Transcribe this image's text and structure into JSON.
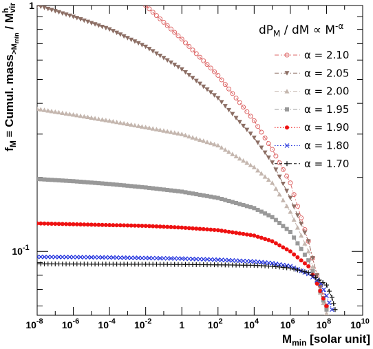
{
  "chart_data": {
    "type": "line",
    "x_scale": "log",
    "y_scale": "log",
    "xlim": [
      1e-08,
      10000000000.0
    ],
    "ylim": [
      0.055,
      1
    ],
    "x_tick_values": [
      1e-08,
      1e-06,
      0.0001,
      0.01,
      1,
      100.0,
      10000.0,
      1000000.0,
      100000000.0,
      10000000000.0
    ],
    "x_tick_labels": [
      {
        "base": "10",
        "exp": "-8"
      },
      {
        "base": "10",
        "exp": "-6"
      },
      {
        "base": "10",
        "exp": "-4"
      },
      {
        "base": "10",
        "exp": "-2"
      },
      {
        "base": "1",
        "exp": ""
      },
      {
        "base": "10",
        "exp": "2"
      },
      {
        "base": "10",
        "exp": "4"
      },
      {
        "base": "10",
        "exp": "6"
      },
      {
        "base": "10",
        "exp": "8"
      },
      {
        "base": "10",
        "exp": "10"
      }
    ],
    "y_tick_labels": [
      {
        "value": 1,
        "base": "1",
        "exp": ""
      },
      {
        "value": 0.1,
        "base": "10",
        "exp": "-1"
      }
    ],
    "xlabel": {
      "main": "M",
      "sub": "min",
      "rest": " [solar unit]"
    },
    "ylabel": {
      "part1": "f",
      "sub1": "M",
      "part2": " ≡ Cumul. mass",
      "sub2": ">M",
      "sub2b": "min",
      "part3": " / M",
      "sup3": "h",
      "sub3": "vir"
    },
    "legend": {
      "title": {
        "a": "dP",
        "a_sub": "M",
        "b": " / dM ∝ M",
        "b_sup": "-α"
      },
      "placement": "top-right"
    },
    "series": [
      {
        "name": "α = 2.10",
        "color": "#dd6666",
        "marker": "open-circle",
        "line": "dashdot",
        "points": [
          [
            0.01,
            1.0
          ],
          [
            1,
            0.73
          ],
          [
            100.0,
            0.52
          ],
          [
            10000.0,
            0.34
          ],
          [
            100000.0,
            0.26
          ],
          [
            1000000.0,
            0.19
          ],
          [
            10000000.0,
            0.11
          ],
          [
            30000000.0,
            0.08
          ],
          [
            100000000.0,
            0.06
          ]
        ]
      },
      {
        "name": "α = 2.05",
        "color": "#8c6e64",
        "marker": "triangle-down",
        "line": "dashdot",
        "points": [
          [
            1e-08,
            1.0
          ],
          [
            1e-06,
            0.9
          ],
          [
            0.0001,
            0.8
          ],
          [
            0.01,
            0.68
          ],
          [
            1,
            0.55
          ],
          [
            100.0,
            0.42
          ],
          [
            10000.0,
            0.29
          ],
          [
            100000.0,
            0.23
          ],
          [
            1000000.0,
            0.165
          ],
          [
            10000000.0,
            0.11
          ],
          [
            30000000.0,
            0.08
          ],
          [
            100000000.0,
            0.058
          ]
        ]
      },
      {
        "name": "α = 2.00",
        "color": "#c4b6ae",
        "marker": "triangle-up",
        "line": "dashdot",
        "points": [
          [
            1e-08,
            0.38
          ],
          [
            1e-06,
            0.36
          ],
          [
            0.0001,
            0.34
          ],
          [
            0.01,
            0.32
          ],
          [
            1,
            0.3
          ],
          [
            100.0,
            0.27
          ],
          [
            10000.0,
            0.22
          ],
          [
            100000.0,
            0.19
          ],
          [
            1000000.0,
            0.145
          ],
          [
            10000000.0,
            0.1
          ],
          [
            30000000.0,
            0.075
          ],
          [
            100000000.0,
            0.056
          ]
        ]
      },
      {
        "name": "α = 1.95",
        "color": "#999999",
        "marker": "square",
        "line": "dashdot",
        "points": [
          [
            1e-08,
            0.197
          ],
          [
            1e-06,
            0.193
          ],
          [
            0.0001,
            0.188
          ],
          [
            0.01,
            0.182
          ],
          [
            1,
            0.175
          ],
          [
            100.0,
            0.165
          ],
          [
            10000.0,
            0.15
          ],
          [
            100000.0,
            0.138
          ],
          [
            1000000.0,
            0.12
          ],
          [
            10000000.0,
            0.092
          ],
          [
            30000000.0,
            0.075
          ],
          [
            100000000.0,
            0.058
          ]
        ]
      },
      {
        "name": "α = 1.90",
        "color": "#ee1111",
        "marker": "filled-circle",
        "line": "dotted",
        "points": [
          [
            1e-08,
            0.13
          ],
          [
            1e-06,
            0.129
          ],
          [
            0.0001,
            0.128
          ],
          [
            0.01,
            0.127
          ],
          [
            1,
            0.125
          ],
          [
            100.0,
            0.122
          ],
          [
            10000.0,
            0.116
          ],
          [
            100000.0,
            0.11
          ],
          [
            1000000.0,
            0.1
          ],
          [
            10000000.0,
            0.087
          ],
          [
            30000000.0,
            0.074
          ],
          [
            100000000.0,
            0.06
          ]
        ]
      },
      {
        "name": "α = 1.80",
        "color": "#2233dd",
        "marker": "cross",
        "line": "dotted",
        "points": [
          [
            1e-08,
            0.095
          ],
          [
            1e-06,
            0.0948
          ],
          [
            0.0001,
            0.0945
          ],
          [
            0.01,
            0.094
          ],
          [
            1,
            0.0935
          ],
          [
            100.0,
            0.0925
          ],
          [
            10000.0,
            0.091
          ],
          [
            100000.0,
            0.0895
          ],
          [
            1000000.0,
            0.087
          ],
          [
            10000000.0,
            0.081
          ],
          [
            50000000.0,
            0.074
          ],
          [
            100000000.0,
            0.066
          ],
          [
            200000000.0,
            0.058
          ]
        ]
      },
      {
        "name": "α = 1.70",
        "color": "#111111",
        "marker": "plus",
        "line": "dashed",
        "points": [
          [
            1e-08,
            0.089
          ],
          [
            1e-06,
            0.0889
          ],
          [
            0.0001,
            0.0888
          ],
          [
            0.01,
            0.0887
          ],
          [
            1,
            0.0885
          ],
          [
            100.0,
            0.0882
          ],
          [
            10000.0,
            0.0878
          ],
          [
            100000.0,
            0.087
          ],
          [
            1000000.0,
            0.0855
          ],
          [
            10000000.0,
            0.082
          ],
          [
            100000000.0,
            0.073
          ],
          [
            200000000.0,
            0.065
          ],
          [
            300000000.0,
            0.058
          ]
        ]
      }
    ]
  }
}
